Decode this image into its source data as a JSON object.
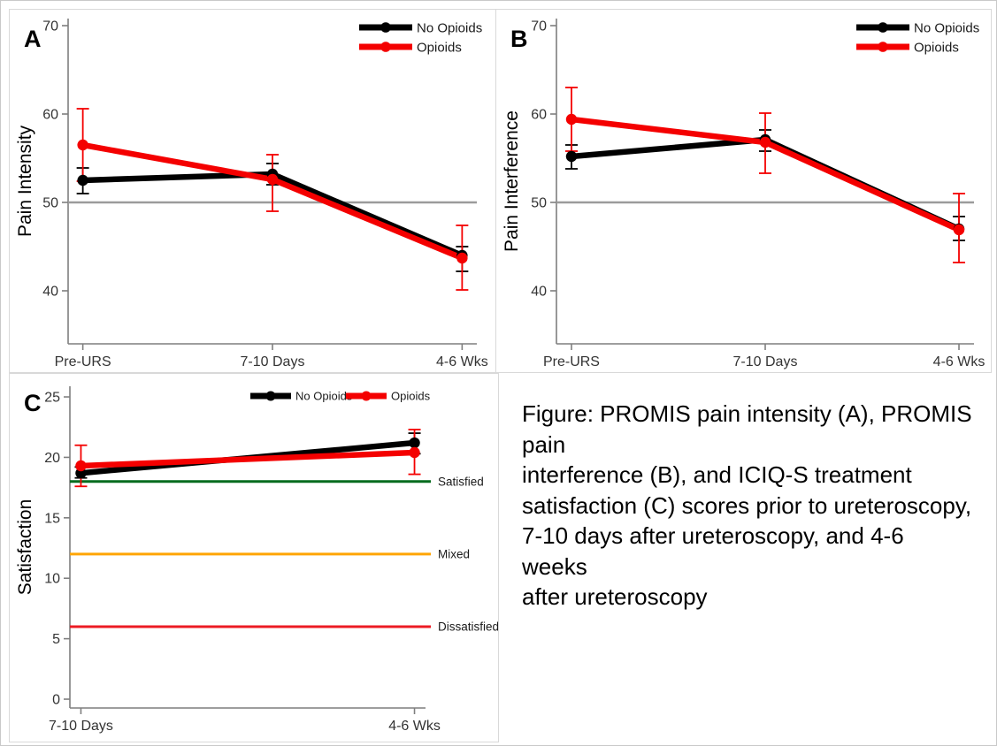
{
  "figure": {
    "caption_lines": [
      "Figure: PROMIS pain intensity (A), PROMIS pain",
      "interference (B), and ICIQ-S treatment",
      "satisfaction (C) scores prior to ureteroscopy,",
      "7-10 days after ureteroscopy, and 4-6 weeks",
      "after ureteroscopy"
    ]
  },
  "chart_data": [
    {
      "panel": "A",
      "type": "line",
      "ylabel": "Pain Intensity",
      "categories": [
        "Pre-URS",
        "7-10 Days",
        "4-6 Wks"
      ],
      "yticks": [
        40,
        50,
        60,
        70
      ],
      "ylim": [
        34,
        70.8
      ],
      "grid": false,
      "legend_position": "top-right-vertical",
      "reference_lines": [
        {
          "value": 50,
          "color": "#9b9b9b",
          "label": ""
        }
      ],
      "series": [
        {
          "name": "No Opioids",
          "color": "#000000",
          "values": [
            52.5,
            53.2,
            44.0
          ],
          "err_low": [
            51.0,
            52.0,
            42.2
          ],
          "err_high": [
            53.9,
            54.4,
            45.0
          ]
        },
        {
          "name": "Opioids",
          "color": "#f40000",
          "values": [
            56.5,
            52.6,
            43.7
          ],
          "err_low": [
            52.4,
            49.0,
            40.1
          ],
          "err_high": [
            60.6,
            55.4,
            47.4
          ]
        }
      ]
    },
    {
      "panel": "B",
      "type": "line",
      "ylabel": "Pain Interference",
      "categories": [
        "Pre-URS",
        "7-10 Days",
        "4-6 Wks"
      ],
      "yticks": [
        40,
        50,
        60,
        70
      ],
      "ylim": [
        34,
        70.8
      ],
      "grid": false,
      "legend_position": "top-right-vertical",
      "reference_lines": [
        {
          "value": 50,
          "color": "#9b9b9b",
          "label": ""
        }
      ],
      "series": [
        {
          "name": "No Opioids",
          "color": "#000000",
          "values": [
            55.2,
            57.1,
            47.0
          ],
          "err_low": [
            53.8,
            55.8,
            45.7
          ],
          "err_high": [
            56.5,
            58.2,
            48.4
          ]
        },
        {
          "name": "Opioids",
          "color": "#f40000",
          "values": [
            59.4,
            56.8,
            46.9
          ],
          "err_low": [
            55.8,
            53.3,
            43.2
          ],
          "err_high": [
            63.0,
            60.1,
            51.0
          ]
        }
      ]
    },
    {
      "panel": "C",
      "type": "line",
      "ylabel": "Satisfaction",
      "categories": [
        "7-10 Days",
        "4-6 Wks"
      ],
      "yticks": [
        0,
        5,
        10,
        15,
        20,
        25
      ],
      "ylim": [
        -0.73,
        25.88
      ],
      "grid": false,
      "legend_position": "top-horizontal",
      "reference_lines": [
        {
          "value": 18,
          "color": "#046b1e",
          "label": "Satisfied"
        },
        {
          "value": 12,
          "color": "#ffa500",
          "label": "Mixed"
        },
        {
          "value": 6,
          "color": "#ec1c24",
          "label": "Dissatisfied"
        }
      ],
      "series": [
        {
          "name": "No Opioids",
          "color": "#000000",
          "values": [
            18.7,
            21.2
          ],
          "err_low": [
            18.3,
            20.3
          ],
          "err_high": [
            19.2,
            22.0
          ]
        },
        {
          "name": "Opioids",
          "color": "#f40000",
          "values": [
            19.3,
            20.4
          ],
          "err_low": [
            17.6,
            18.6
          ],
          "err_high": [
            21.0,
            22.3
          ]
        }
      ]
    }
  ]
}
